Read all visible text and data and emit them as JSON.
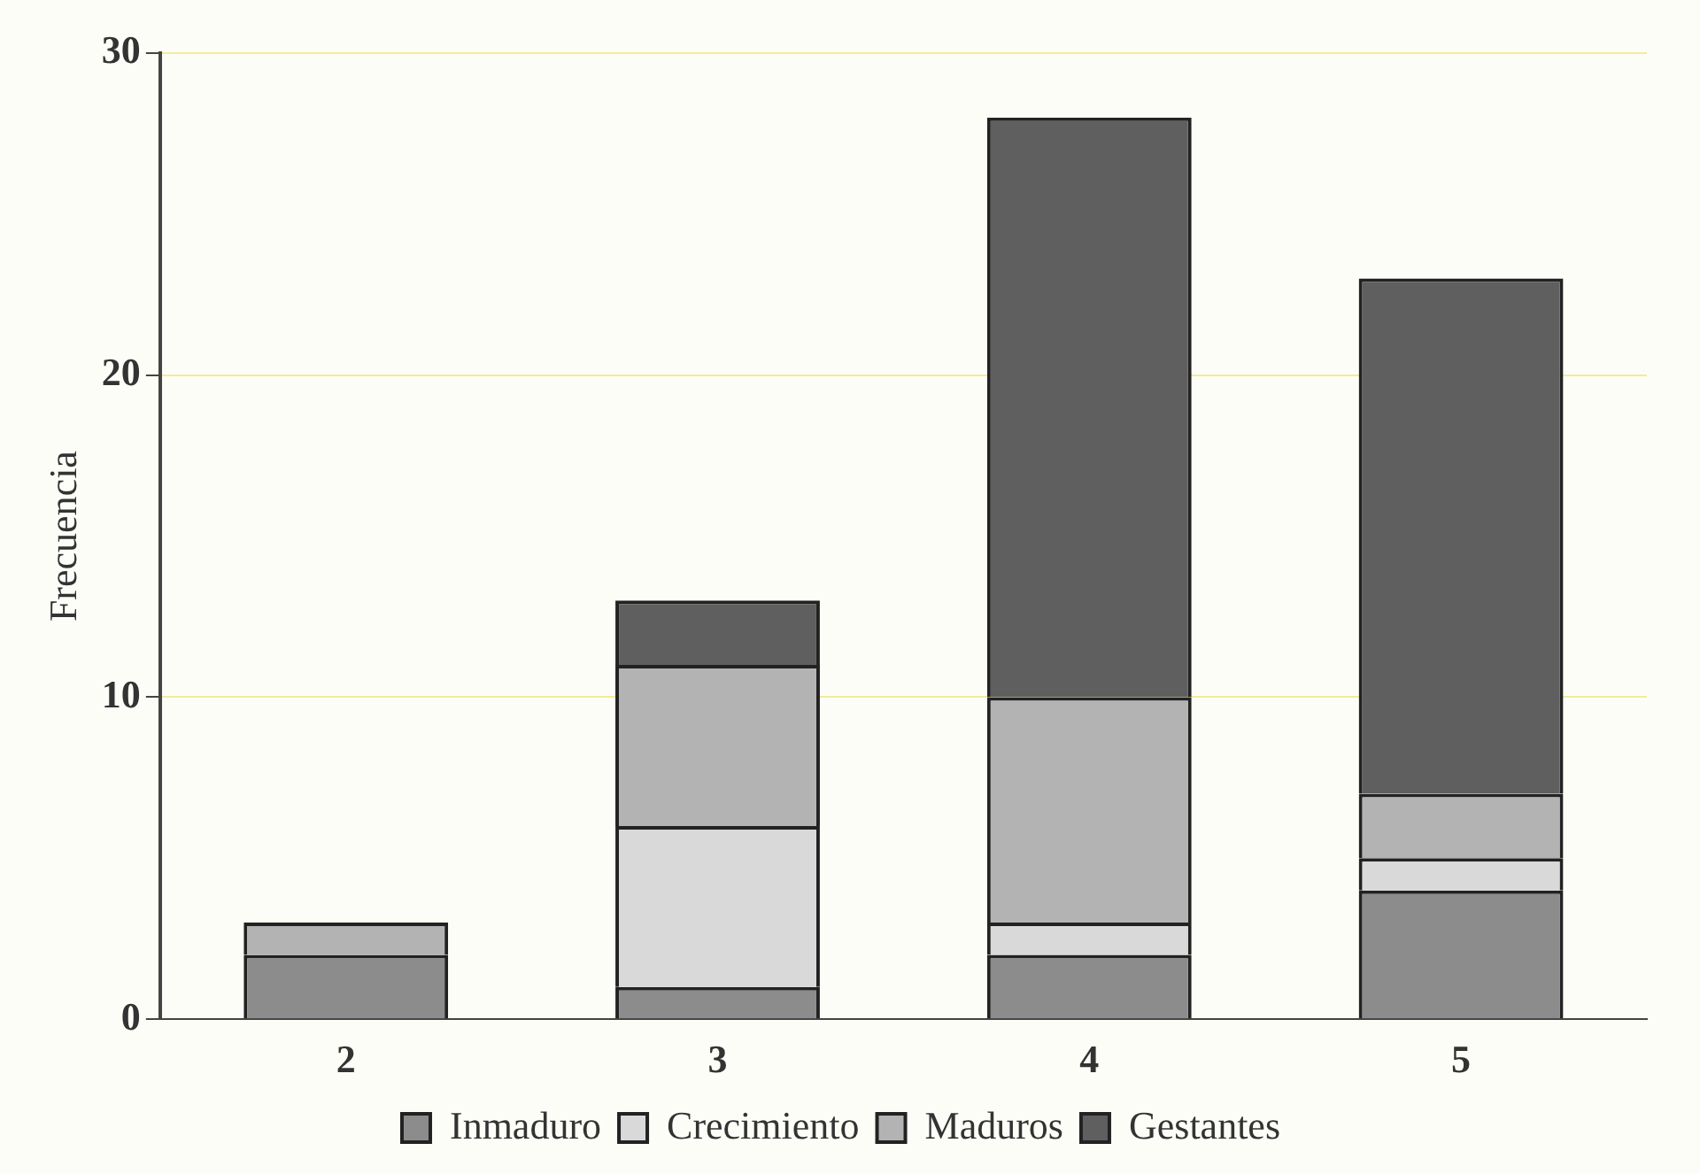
{
  "chart_data": {
    "type": "bar",
    "stacked": true,
    "ylabel": "Frecuencia",
    "categories": [
      "2",
      "3",
      "4",
      "5"
    ],
    "series": [
      {
        "name": "Inmaduro",
        "color": "#8c8c8c",
        "values": [
          2,
          1,
          2,
          4
        ]
      },
      {
        "name": "Crecimiento",
        "color": "#d9d9d9",
        "values": [
          0,
          5,
          1,
          1
        ]
      },
      {
        "name": "Maduros",
        "color": "#b3b3b3",
        "values": [
          1,
          5,
          7,
          2
        ]
      },
      {
        "name": "Gestantes",
        "color": "#5f5f5f",
        "values": [
          0,
          2,
          18,
          16
        ]
      }
    ],
    "ylim": [
      0,
      30
    ],
    "yticks": [
      0,
      10,
      20,
      30
    ],
    "grid": "y",
    "legend": "bottom"
  }
}
